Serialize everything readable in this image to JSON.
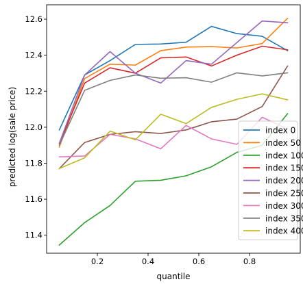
{
  "chart_data": {
    "type": "line",
    "title": "",
    "xlabel": "quantile",
    "ylabel": "predicted log(sale price)",
    "xlim": [
      0.0,
      1.0
    ],
    "ylim": [
      11.3,
      12.68
    ],
    "xticks": [
      0.2,
      0.4,
      0.6,
      0.8
    ],
    "xtick_labels": [
      "0.2",
      "0.4",
      "0.6",
      "0.8"
    ],
    "yticks": [
      11.4,
      11.6,
      11.8,
      12.0,
      12.2,
      12.4,
      12.6
    ],
    "ytick_labels": [
      "11.4",
      "11.6",
      "11.8",
      "12.0",
      "12.2",
      "12.4",
      "12.6"
    ],
    "grid": false,
    "legend_position": "lower-right",
    "x": [
      0.05,
      0.15,
      0.25,
      0.35,
      0.45,
      0.55,
      0.65,
      0.75,
      0.85,
      0.95
    ],
    "series": [
      {
        "name": "index 0",
        "color": "#1f77b4",
        "values": [
          11.985,
          12.29,
          12.37,
          12.46,
          12.462,
          12.472,
          12.56,
          12.52,
          12.505,
          12.425
        ]
      },
      {
        "name": "index 50",
        "color": "#ff7f0e",
        "values": [
          11.89,
          12.27,
          12.35,
          12.345,
          12.425,
          12.445,
          12.448,
          12.44,
          12.465,
          12.605
        ]
      },
      {
        "name": "index 100",
        "color": "#2ca02c",
        "values": [
          11.345,
          11.47,
          11.565,
          11.7,
          11.705,
          11.73,
          11.78,
          11.86,
          11.9,
          12.075
        ]
      },
      {
        "name": "index 150",
        "color": "#d62728",
        "values": [
          11.91,
          12.245,
          12.33,
          12.3,
          12.385,
          12.39,
          12.34,
          12.4,
          12.45,
          12.43
        ]
      },
      {
        "name": "index 200",
        "color": "#9467bd",
        "values": [
          11.91,
          12.29,
          12.42,
          12.3,
          12.245,
          12.37,
          12.35,
          12.47,
          12.59,
          12.58
        ]
      },
      {
        "name": "index 250",
        "color": "#8c564b",
        "values": [
          11.77,
          11.915,
          11.96,
          11.975,
          11.965,
          11.985,
          12.03,
          12.045,
          12.115,
          12.34
        ]
      },
      {
        "name": "index 300",
        "color": "#e377c2",
        "values": [
          11.835,
          11.84,
          11.96,
          11.935,
          11.88,
          12.01,
          11.935,
          11.905,
          12.055,
          11.99
        ]
      },
      {
        "name": "index 350",
        "color": "#7f7f7f",
        "values": [
          11.9,
          12.205,
          12.26,
          12.29,
          12.272,
          12.275,
          12.25,
          12.302,
          12.285,
          12.302
        ]
      },
      {
        "name": "index 400",
        "color": "#bcbd22",
        "values": [
          11.77,
          11.83,
          11.978,
          11.93,
          12.072,
          12.02,
          12.11,
          12.155,
          12.185,
          12.152
        ]
      }
    ]
  }
}
